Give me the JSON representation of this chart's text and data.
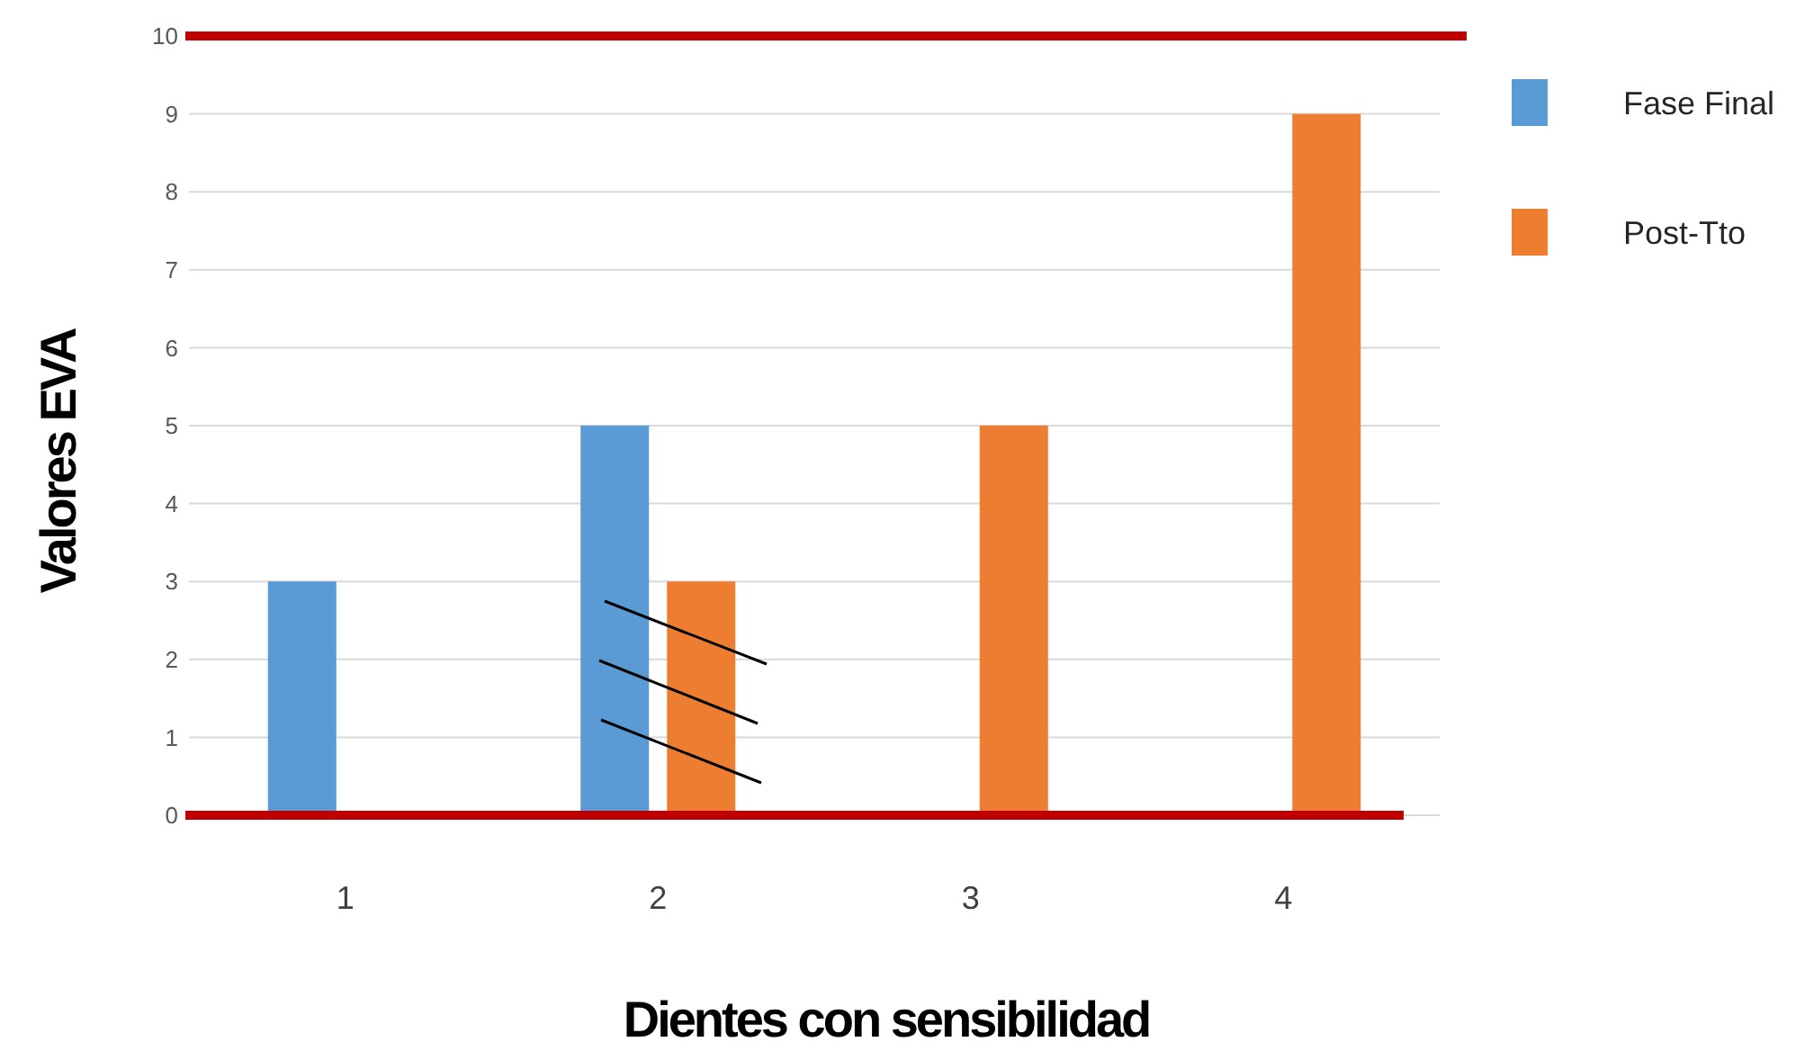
{
  "chart_data": {
    "type": "bar",
    "xlabel": "Dientes con sensibilidad",
    "ylabel": "Valores EVA",
    "categories": [
      "1",
      "2",
      "3",
      "4"
    ],
    "series": [
      {
        "name": "Fase Final",
        "color": "#5b9bd5",
        "values": [
          3,
          5,
          0,
          0
        ]
      },
      {
        "name": "Post-Tto",
        "color": "#ed7d31",
        "values": [
          0,
          3,
          5,
          9
        ]
      }
    ],
    "ylim": [
      0,
      10
    ],
    "yticks": [
      0,
      1,
      2,
      3,
      4,
      5,
      6,
      7,
      8,
      9,
      10
    ],
    "grid": "y",
    "legend": "top right",
    "ref_lines": [
      {
        "axis": "y",
        "value": 10,
        "color": "#c00000"
      }
    ]
  }
}
